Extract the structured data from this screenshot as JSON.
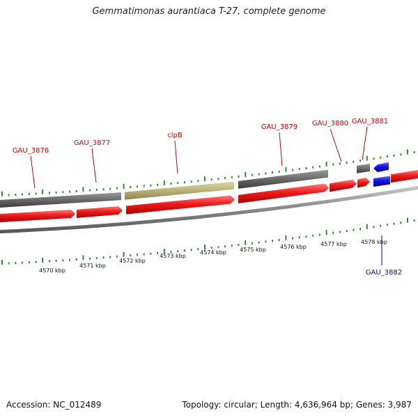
{
  "title": "Gemmatimonas aurantiaca T-27, complete genome",
  "footer": {
    "accession": "Accession: NC_012489",
    "summary": "Topology: circular; Length: 4,636,964 bp; Genes: 3,987"
  },
  "colors": {
    "forward_gene": "#ee1c1c",
    "reverse_gene": "#1414e6",
    "other_feature": "#6e6e6e",
    "rrna_feature": "#bdb57a",
    "tick": "#2e8b2e",
    "backbone": "#8c8c8c",
    "label_forward": "#cc0000",
    "label_reverse": "#0000cc"
  },
  "axis_labels": [
    "4570 kbp",
    "4571 kbp",
    "4572 kbp",
    "4573 kbp",
    "4574 kbp",
    "4575 kbp",
    "4576 kbp",
    "4577 kbp",
    "4578 kbp"
  ],
  "gene_labels": [
    {
      "text": "GAU_3876",
      "strand": "forward"
    },
    {
      "text": "GAU_3877",
      "strand": "forward"
    },
    {
      "text": "clpB",
      "strand": "forward"
    },
    {
      "text": "GAU_3879",
      "strand": "forward"
    },
    {
      "text": "GAU_3880",
      "strand": "forward"
    },
    {
      "text": "GAU_3881",
      "strand": "forward"
    },
    {
      "text": "GAU_3882",
      "strand": "reverse"
    }
  ]
}
